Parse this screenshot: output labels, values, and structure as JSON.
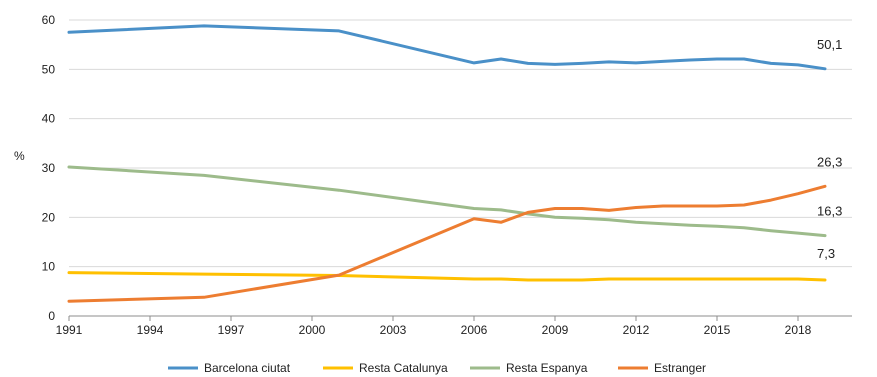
{
  "chart_data": {
    "type": "line",
    "title": "",
    "xlabel": "",
    "ylabel": "%",
    "ylim": [
      0,
      60
    ],
    "yticks": [
      0,
      10,
      20,
      30,
      40,
      50,
      60
    ],
    "xlim": [
      1991,
      2020
    ],
    "xticks": [
      1991,
      1994,
      1997,
      2000,
      2003,
      2006,
      2009,
      2012,
      2015,
      2018
    ],
    "grid": "horizontal",
    "legend_position": "bottom",
    "series": [
      {
        "name": "Barcelona ciutat",
        "color": "#4a90c8",
        "x": [
          1991,
          1996,
          2001,
          2006,
          2007,
          2008,
          2009,
          2010,
          2011,
          2012,
          2013,
          2014,
          2015,
          2016,
          2017,
          2018,
          2019
        ],
        "values": [
          57.5,
          58.8,
          57.8,
          51.3,
          52.1,
          51.2,
          51.0,
          51.2,
          51.5,
          51.3,
          51.6,
          51.9,
          52.1,
          52.1,
          51.2,
          50.9,
          50.1
        ],
        "end_label": "50,1"
      },
      {
        "name": "Resta Catalunya",
        "color": "#ffc000",
        "x": [
          1991,
          1996,
          2001,
          2006,
          2007,
          2008,
          2009,
          2010,
          2011,
          2012,
          2013,
          2014,
          2015,
          2016,
          2017,
          2018,
          2019
        ],
        "values": [
          8.8,
          8.5,
          8.2,
          7.5,
          7.5,
          7.3,
          7.3,
          7.3,
          7.5,
          7.5,
          7.5,
          7.5,
          7.5,
          7.5,
          7.5,
          7.5,
          7.3
        ],
        "end_label": "7,3"
      },
      {
        "name": "Resta Espanya",
        "color": "#9dbb8b",
        "x": [
          1991,
          1996,
          2001,
          2006,
          2007,
          2008,
          2009,
          2010,
          2011,
          2012,
          2013,
          2014,
          2015,
          2016,
          2017,
          2018,
          2019
        ],
        "values": [
          30.2,
          28.5,
          25.5,
          21.8,
          21.5,
          20.7,
          20.0,
          19.8,
          19.5,
          19.0,
          18.7,
          18.4,
          18.2,
          17.9,
          17.3,
          16.8,
          16.3
        ],
        "end_label": "16,3"
      },
      {
        "name": "Estranger",
        "color": "#ed7d31",
        "x": [
          1991,
          1996,
          2001,
          2006,
          2007,
          2008,
          2009,
          2010,
          2011,
          2012,
          2013,
          2014,
          2015,
          2016,
          2017,
          2018,
          2019
        ],
        "values": [
          3.0,
          3.8,
          8.3,
          19.7,
          19.0,
          21.0,
          21.8,
          21.8,
          21.4,
          22.0,
          22.3,
          22.3,
          22.3,
          22.5,
          23.5,
          24.8,
          26.3
        ],
        "end_label": "26,3"
      }
    ]
  }
}
